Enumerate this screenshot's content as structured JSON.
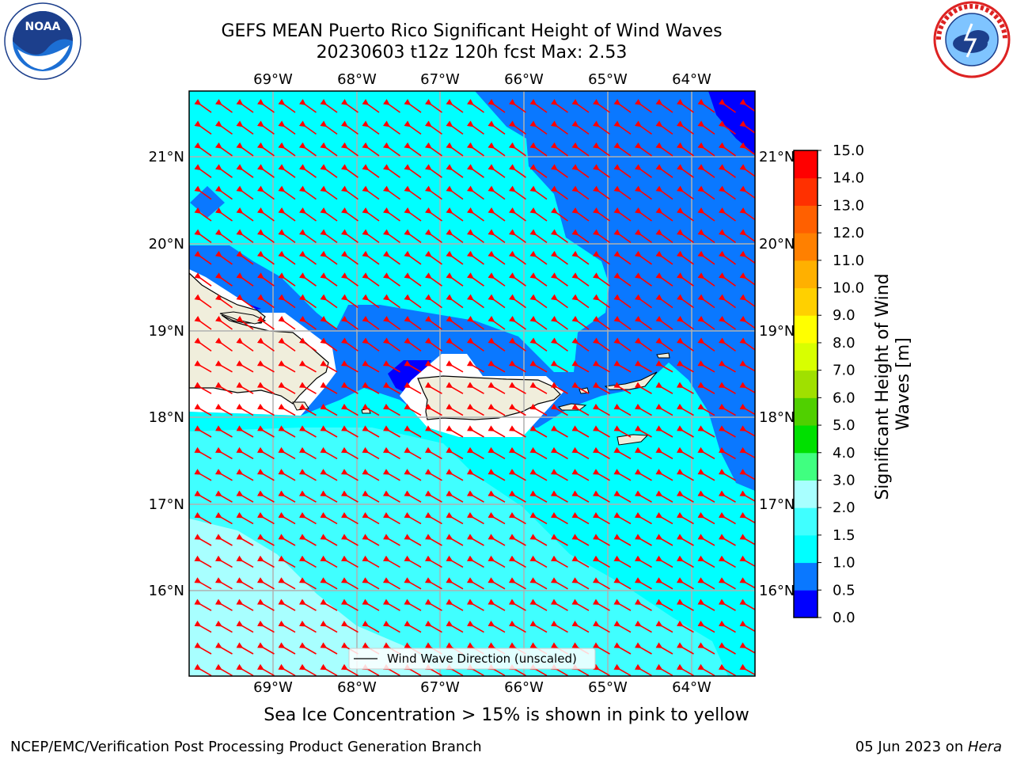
{
  "title_line1": "GEFS MEAN Puerto Rico Significant Height of Wind Waves",
  "title_line2": "20230603 t12z 120h fcst   Max: 2.53",
  "logos": {
    "left": {
      "icon": "noaa-logo",
      "text": "NOAA"
    },
    "right": {
      "icon": "nws-logo"
    }
  },
  "map": {
    "lon_ticks": [
      "69°W",
      "68°W",
      "67°W",
      "66°W",
      "65°W",
      "64°W"
    ],
    "lat_ticks": [
      "21°N",
      "20°N",
      "19°N",
      "18°N",
      "17°N",
      "16°N"
    ],
    "legend_label": "Wind Wave Direction (unscaled)",
    "colors": {
      "land": "#f0eedc",
      "grid": "#b0b0b0",
      "arrow": "#ff0000"
    }
  },
  "colorbar": {
    "label": "Significant Height of Wind Waves [m]",
    "label_line1": "Significant Height of Wind",
    "label_line2": "Waves [m]",
    "ticks": [
      "0.0",
      "0.5",
      "1.0",
      "1.5",
      "2.0",
      "3.0",
      "4.0",
      "5.0",
      "6.0",
      "7.0",
      "8.0",
      "9.0",
      "10.0",
      "11.0",
      "12.0",
      "13.0",
      "14.0",
      "15.0"
    ],
    "colors": [
      "#0000ff",
      "#0a78ff",
      "#00ffff",
      "#40ffff",
      "#a8ffff",
      "#40ff80",
      "#00e000",
      "#50d000",
      "#a0e000",
      "#d8ff00",
      "#ffff00",
      "#ffd000",
      "#ffb000",
      "#ff8000",
      "#ff6000",
      "#ff3000",
      "#ff0000"
    ]
  },
  "sea_ice_note": "Sea Ice Concentration > 15% is shown in pink to yellow",
  "footer_left": "NCEP/EMC/Verification Post Processing Product Generation Branch",
  "footer_right_prefix": "05 Jun 2023 on ",
  "footer_right_host": "Hera"
}
